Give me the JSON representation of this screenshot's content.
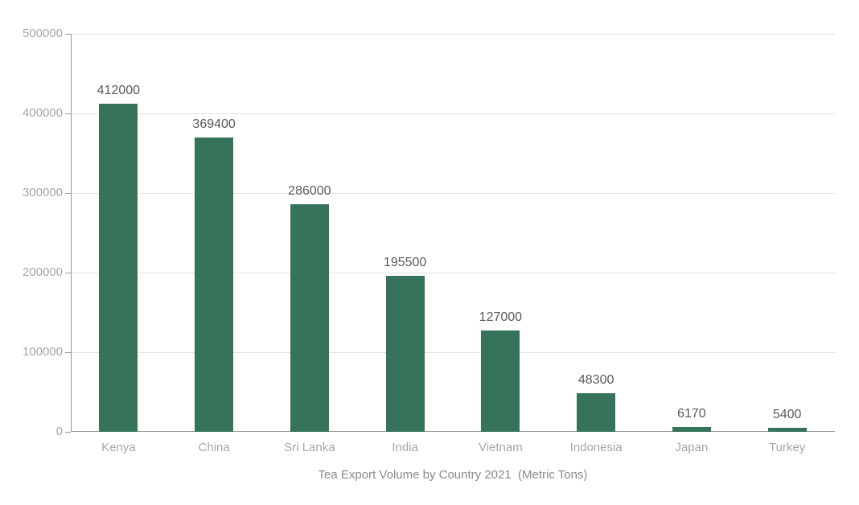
{
  "page": {
    "background": "#ffffff"
  },
  "chart_data": {
    "type": "bar",
    "title": "Tea Export Volume by Country 2021  (Metric Tons)",
    "categories": [
      "Kenya",
      "China",
      "Sri Lanka",
      "India",
      "Vietnam",
      "Indonesia",
      "Japan",
      "Turkey"
    ],
    "values": [
      412000,
      369400,
      286000,
      195500,
      127000,
      48300,
      6170,
      5400
    ],
    "value_labels": [
      "412000",
      "369400",
      "286000",
      "195500",
      "127000",
      "48300",
      "6170",
      "5400"
    ],
    "xlabel": "",
    "ylabel": "",
    "ylim": [
      0,
      500000
    ],
    "ytick_interval": 100000,
    "ytick_labels": [
      "500000",
      "400000",
      "300000",
      "200000",
      "100000",
      "0"
    ],
    "grid": true,
    "legend_position": "none",
    "style": {
      "bar_color": "#35735b",
      "gridline_color": "#e2e2e2",
      "axis_line_color": "#979797",
      "tick_label_color": "#a6a6a6",
      "category_label_color": "#a6a6a6",
      "value_label_color": "#595959",
      "title_color": "#8a8a8a"
    }
  }
}
